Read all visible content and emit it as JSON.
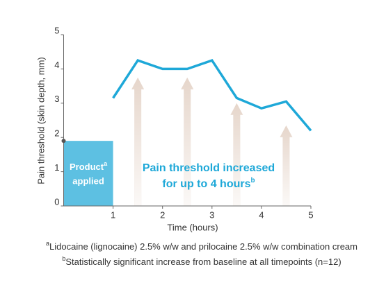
{
  "chart_data": {
    "type": "line",
    "ylabel": "Pain threshold (skin depth, mm)",
    "xlabel": "Time (hours)",
    "x": [
      1,
      1.5,
      2,
      2.5,
      3,
      3.5,
      4,
      4.5,
      5
    ],
    "values": [
      3.15,
      4.25,
      4.0,
      4.0,
      4.25,
      3.15,
      2.85,
      3.05,
      2.2
    ],
    "color": "#1ea8d8",
    "xlim": [
      0,
      5
    ],
    "ylim": [
      0,
      5
    ],
    "xticks": [
      1,
      2,
      3,
      4,
      5
    ],
    "yticks": [
      0,
      1,
      2,
      3,
      4,
      5
    ],
    "baseline_box": {
      "xlim": [
        0,
        1
      ],
      "value": 1.9,
      "color": "#5dc0e2",
      "label": "Product",
      "label_sup": "a",
      "label_line2": "applied"
    },
    "arrows": {
      "x": [
        1.5,
        2.5,
        3.5,
        4.5
      ],
      "values": [
        3.75,
        3.75,
        3.0,
        2.35
      ],
      "color": "#e6d6cb"
    },
    "annotation": {
      "text": "Pain threshold increased",
      "text_line2": "for up to 4 hours",
      "sup": "b"
    },
    "footnotes": [
      {
        "mark": "a",
        "text": "Lidocaine (lignocaine) 2.5% w/w and  prilocaine 2.5% w/w combination cream"
      },
      {
        "mark": "b",
        "text": "Statistically significant increase from baseline at all timepoints (n=12)"
      }
    ]
  }
}
